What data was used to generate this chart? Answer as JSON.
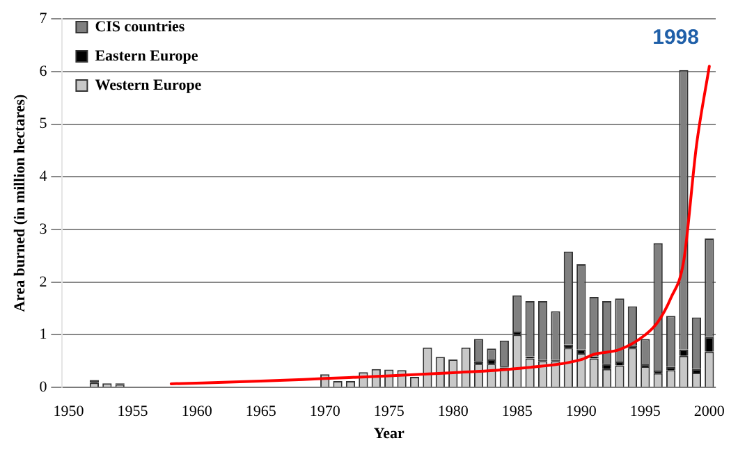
{
  "chart_data": {
    "type": "bar",
    "stacked": true,
    "xlabel": "Year",
    "ylabel": "Area burned (in million hectares)",
    "categories": [
      "1950",
      null,
      null,
      null,
      null,
      "1955",
      null,
      null,
      null,
      null,
      "1960",
      null,
      null,
      null,
      null,
      "1965",
      null,
      null,
      null,
      null,
      "1970",
      null,
      null,
      null,
      null,
      "1975",
      null,
      null,
      null,
      null,
      "1980",
      null,
      null,
      null,
      null,
      "1985",
      null,
      null,
      null,
      null,
      "1990",
      null,
      null,
      null,
      null,
      "1995",
      null,
      null,
      null,
      null,
      "2000"
    ],
    "series": [
      {
        "name": "Western Europe",
        "color": "#c8c8c8",
        "values": [
          null,
          null,
          0.09,
          0.08,
          0.05,
          null,
          null,
          null,
          null,
          null,
          null,
          null,
          null,
          null,
          null,
          null,
          null,
          null,
          null,
          null,
          0.25,
          0.12,
          0.12,
          0.29,
          0.35,
          0.34,
          0.33,
          0.2,
          0.76,
          0.58,
          0.53,
          0.76,
          0.45,
          0.45,
          0.38,
          1.0,
          0.55,
          0.5,
          0.5,
          0.75,
          0.65,
          0.55,
          0.35,
          0.42,
          0.75,
          0.4,
          0.27,
          0.33,
          0.6,
          0.28,
          0.68
        ]
      },
      {
        "name": "Eastern Europe",
        "color": "#000000",
        "values": [
          null,
          null,
          0.05,
          null,
          0.03,
          null,
          null,
          null,
          null,
          null,
          null,
          null,
          null,
          null,
          null,
          null,
          null,
          null,
          null,
          null,
          null,
          null,
          null,
          null,
          null,
          null,
          null,
          null,
          null,
          null,
          null,
          null,
          0.05,
          0.08,
          0.03,
          0.06,
          0.04,
          0.02,
          0.02,
          0.06,
          0.07,
          0.04,
          0.1,
          0.07,
          0.05,
          0.04,
          0.05,
          0.06,
          0.12,
          0.07,
          0.28
        ]
      },
      {
        "name": "CIS countries",
        "color": "#808080",
        "values": [
          null,
          null,
          null,
          null,
          null,
          null,
          null,
          null,
          null,
          null,
          null,
          null,
          null,
          null,
          null,
          null,
          null,
          null,
          null,
          null,
          null,
          null,
          null,
          null,
          null,
          null,
          null,
          null,
          null,
          null,
          null,
          null,
          0.42,
          0.21,
          0.48,
          0.69,
          1.05,
          1.12,
          0.93,
          1.77,
          1.62,
          1.13,
          1.19,
          1.2,
          0.74,
          0.48,
          2.42,
          0.97,
          5.31,
          0.98,
          1.87
        ]
      },
      {
        "type": "line",
        "color": "#ff0000",
        "values": [
          null,
          null,
          null,
          null,
          null,
          null,
          null,
          null,
          0.07,
          null,
          null,
          null,
          null,
          null,
          null,
          0.12,
          null,
          null,
          null,
          null,
          0.17,
          null,
          null,
          null,
          null,
          0.22,
          null,
          null,
          null,
          null,
          0.28,
          null,
          null,
          null,
          null,
          0.36,
          null,
          null,
          null,
          null,
          0.53,
          0.63,
          null,
          0.72,
          null,
          1.0,
          1.25,
          1.7,
          2.4,
          4.6,
          6.1
        ]
      }
    ],
    "ylim": [
      0,
      7
    ],
    "yticks": [
      0,
      1,
      2,
      3,
      4,
      5,
      6,
      7
    ],
    "grid": "y",
    "legend": "top left",
    "annotations": [
      "1998"
    ]
  }
}
